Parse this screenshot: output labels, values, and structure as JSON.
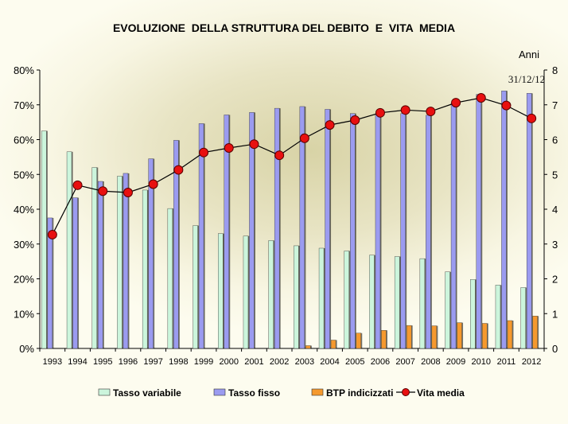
{
  "chart_data": {
    "type": "bar",
    "title": "EVOLUZIONE  DELLA STRUTTURA DEL DEBITO  E  VITA  MEDIA",
    "categories": [
      "1993",
      "1994",
      "1995",
      "1996",
      "1997",
      "1998",
      "1999",
      "2000",
      "2001",
      "2002",
      "2003",
      "2004",
      "2005",
      "2006",
      "2007",
      "2008",
      "2009",
      "2010",
      "2011",
      "2012"
    ],
    "series": [
      {
        "name": "Tasso variabile",
        "type": "bar",
        "axis": "left",
        "color": "#ccf5dc",
        "values": [
          62.5,
          56.5,
          52,
          49.5,
          45.5,
          40.2,
          35.3,
          33,
          32.3,
          31,
          29.5,
          28.8,
          28,
          26.8,
          26.4,
          25.8,
          22,
          19.8,
          18.2,
          17.5
        ]
      },
      {
        "name": "Tasso fisso",
        "type": "bar",
        "axis": "left",
        "color": "#9b9bf0",
        "values": [
          37.5,
          43.3,
          48,
          50.3,
          54.5,
          59.8,
          64.6,
          67.1,
          67.8,
          69,
          69.5,
          68.7,
          67.5,
          67.5,
          67.5,
          67,
          70.5,
          73,
          74,
          73.3
        ]
      },
      {
        "name": "BTP indicizzati",
        "type": "bar",
        "axis": "left",
        "color": "#f5992e",
        "values": [
          0,
          0,
          0,
          0,
          0,
          0,
          0,
          0,
          0,
          0,
          0.8,
          2.4,
          4.4,
          5.2,
          6.6,
          6.5,
          7.4,
          7.2,
          8,
          9.3
        ]
      },
      {
        "name": "Vita media",
        "type": "line",
        "axis": "right",
        "color": "#e81010",
        "values": [
          3.27,
          4.69,
          4.52,
          4.48,
          4.72,
          5.13,
          5.63,
          5.76,
          5.87,
          5.55,
          6.04,
          6.42,
          6.56,
          6.77,
          6.85,
          6.81,
          7.06,
          7.2,
          6.98,
          6.61
        ]
      }
    ],
    "y_left": {
      "min": 0,
      "max": 80,
      "ticks": [
        "0%",
        "10%",
        "20%",
        "30%",
        "40%",
        "50%",
        "60%",
        "70%",
        "80%"
      ]
    },
    "y_right": {
      "label": "Anni",
      "min": 0,
      "max": 8,
      "ticks": [
        "0",
        "1",
        "2",
        "3",
        "4",
        "5",
        "6",
        "7",
        "8"
      ]
    },
    "annotation": "31/12/12",
    "legend_position": "bottom",
    "grid": false
  }
}
